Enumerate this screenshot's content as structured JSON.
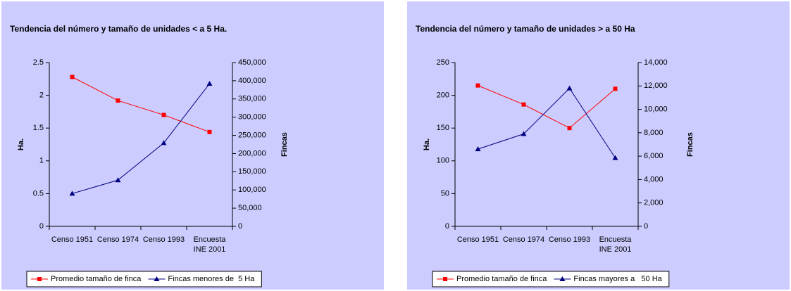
{
  "chart_data": [
    {
      "type": "line",
      "title": "Tendencia del número y tamaño de unidades < a 5 Ha.",
      "categories": [
        "Censo 1951",
        "Censo 1974",
        "Censo 1993",
        "Encuesta INE 2001"
      ],
      "ylabel": "Ha.",
      "y2label": "Fincas",
      "ylim": [
        0,
        2.5
      ],
      "yticks": [
        0,
        0.5,
        1,
        1.5,
        2,
        2.5
      ],
      "y2lim": [
        0,
        450000
      ],
      "y2ticks": [
        0,
        {
          "value": 50000,
          "label": "50,000"
        },
        {
          "value": 100000,
          "label": "100,000"
        },
        {
          "value": 150000,
          "label": "150,000"
        },
        {
          "value": 200000,
          "label": "200,000"
        },
        {
          "value": 250000,
          "label": "250,000"
        },
        {
          "value": 300000,
          "label": "300,000"
        },
        {
          "value": 350000,
          "label": "350,000"
        },
        {
          "value": 400000,
          "label": "400,000"
        },
        {
          "value": 450000,
          "label": "450,000"
        }
      ],
      "series": [
        {
          "name": "Promedio tamaño de finca",
          "color": "#ff0000",
          "marker": "square",
          "values": [
            2.28,
            1.92,
            1.7,
            1.44
          ]
        },
        {
          "name": "Fincas menores de  5 Ha",
          "color": "#000080",
          "marker": "triangle",
          "axis": "y2",
          "values": [
            90000,
            127000,
            229000,
            392000
          ]
        }
      ]
    },
    {
      "type": "line",
      "title": "Tendencia del número y tamaño de unidades > a 50 Ha",
      "categories": [
        "Censo 1951",
        "Censo 1974",
        "Censo 1993",
        "Encuesta INE 2001"
      ],
      "ylabel": "Ha.",
      "y2label": "Fincas",
      "ylim": [
        0,
        250
      ],
      "yticks": [
        0,
        50,
        100,
        150,
        200,
        250
      ],
      "y2lim": [
        0,
        14000
      ],
      "y2ticks": [
        0,
        {
          "value": 2000,
          "label": "2,000"
        },
        {
          "value": 4000,
          "label": "4,000"
        },
        {
          "value": 6000,
          "label": "6,000"
        },
        {
          "value": 8000,
          "label": "8,000"
        },
        {
          "value": 10000,
          "label": "10,000"
        },
        {
          "value": 12000,
          "label": "12,000"
        },
        {
          "value": 14000,
          "label": "14,000"
        }
      ],
      "series": [
        {
          "name": "Promedio tamaño de finca",
          "color": "#ff0000",
          "marker": "square",
          "values": [
            215,
            186,
            150,
            210
          ]
        },
        {
          "name": "Fincas mayores a   50 Ha",
          "color": "#000080",
          "marker": "triangle",
          "axis": "y2",
          "values": [
            6600,
            7900,
            11800,
            5850
          ]
        }
      ]
    }
  ]
}
